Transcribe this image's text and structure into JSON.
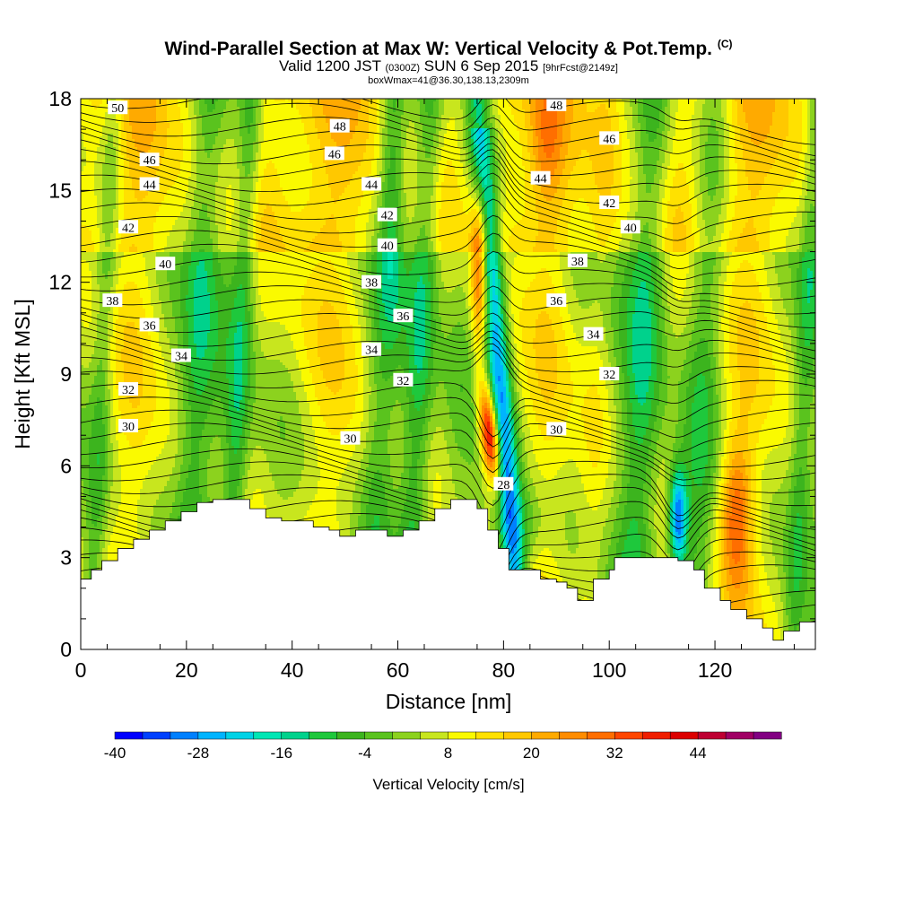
{
  "title": {
    "line1": "Wind-Parallel Section at Max W: Vertical Velocity & Pot.Temp.",
    "line1_mark": "(C)",
    "line2_a": "Valid 1200 JST",
    "line2_b": "(0300Z)",
    "line2_c": "SUN 6 Sep 2015",
    "line2_d": "[9hrFcst@2149z]",
    "line3": "boxWmax=41@36.30,138.13,2309m"
  },
  "chart_data": {
    "type": "heatmap",
    "xlabel": "Distance [nm]",
    "ylabel": "Height [Kft MSL]",
    "xlim": [
      0,
      139
    ],
    "ylim": [
      0,
      18
    ],
    "x_ticks": [
      0,
      20,
      40,
      60,
      80,
      100,
      120
    ],
    "y_ticks": [
      0,
      3,
      6,
      9,
      12,
      15,
      18
    ],
    "colorbar": {
      "label": "Vertical Velocity [cm/s]",
      "tick_values": [
        -40,
        -28,
        -16,
        -4,
        8,
        20,
        32,
        44
      ],
      "min": -40,
      "max": 56,
      "step": 4,
      "colors": [
        "#0000ff",
        "#0040ff",
        "#0080ff",
        "#00b4ff",
        "#00d2e6",
        "#00e6b4",
        "#00d28c",
        "#1ec83c",
        "#3cb41e",
        "#5ac31e",
        "#8cd21e",
        "#c8e61e",
        "#fafa00",
        "#ffe100",
        "#ffc800",
        "#ffaa00",
        "#ff8c00",
        "#ff6e00",
        "#ff4600",
        "#f01e00",
        "#dc0000",
        "#be0032",
        "#a00064",
        "#820082"
      ]
    },
    "terrain_kft": [
      [
        0,
        2.3
      ],
      [
        2,
        2.6
      ],
      [
        4,
        2.9
      ],
      [
        7,
        3.3
      ],
      [
        10,
        3.6
      ],
      [
        13,
        3.9
      ],
      [
        16,
        4.2
      ],
      [
        19,
        4.5
      ],
      [
        22,
        4.8
      ],
      [
        25,
        4.9
      ],
      [
        29,
        4.9
      ],
      [
        32,
        4.6
      ],
      [
        35,
        4.3
      ],
      [
        38,
        4.2
      ],
      [
        41,
        4.2
      ],
      [
        44,
        4.0
      ],
      [
        47,
        3.9
      ],
      [
        49,
        3.7
      ],
      [
        52,
        3.9
      ],
      [
        55,
        3.9
      ],
      [
        58,
        3.7
      ],
      [
        61,
        3.9
      ],
      [
        64,
        4.2
      ],
      [
        67,
        4.6
      ],
      [
        70,
        4.9
      ],
      [
        73,
        4.9
      ],
      [
        75,
        4.6
      ],
      [
        77,
        3.9
      ],
      [
        79,
        3.3
      ],
      [
        81,
        2.6
      ],
      [
        84,
        2.6
      ],
      [
        87,
        2.3
      ],
      [
        90,
        2.2
      ],
      [
        92,
        2.0
      ],
      [
        94,
        1.6
      ],
      [
        96,
        1.6
      ],
      [
        97,
        2.3
      ],
      [
        100,
        2.6
      ],
      [
        101,
        3.0
      ],
      [
        108,
        3.0
      ],
      [
        113,
        2.9
      ],
      [
        116,
        2.6
      ],
      [
        118,
        2.0
      ],
      [
        121,
        1.6
      ],
      [
        123,
        1.3
      ],
      [
        126,
        1.0
      ],
      [
        129,
        0.7
      ],
      [
        131,
        0.3
      ],
      [
        133,
        0.6
      ],
      [
        136,
        0.9
      ],
      [
        139,
        1.3
      ]
    ],
    "theta_isentrope_labels_c": [
      {
        "t": "50",
        "x": 7,
        "y": 17.7
      },
      {
        "t": "48",
        "x": 49,
        "y": 17.1
      },
      {
        "t": "48",
        "x": 90,
        "y": 17.8
      },
      {
        "t": "46",
        "x": 13,
        "y": 16.0
      },
      {
        "t": "46",
        "x": 48,
        "y": 16.2
      },
      {
        "t": "46",
        "x": 100,
        "y": 16.7
      },
      {
        "t": "44",
        "x": 13,
        "y": 15.2
      },
      {
        "t": "44",
        "x": 55,
        "y": 15.2
      },
      {
        "t": "44",
        "x": 87,
        "y": 15.4
      },
      {
        "t": "42",
        "x": 9,
        "y": 13.8
      },
      {
        "t": "42",
        "x": 58,
        "y": 14.2
      },
      {
        "t": "42",
        "x": 100,
        "y": 14.6
      },
      {
        "t": "40",
        "x": 16,
        "y": 12.6
      },
      {
        "t": "40",
        "x": 58,
        "y": 13.2
      },
      {
        "t": "40",
        "x": 104,
        "y": 13.8
      },
      {
        "t": "38",
        "x": 6,
        "y": 11.4
      },
      {
        "t": "38",
        "x": 55,
        "y": 12.0
      },
      {
        "t": "38",
        "x": 94,
        "y": 12.7
      },
      {
        "t": "36",
        "x": 13,
        "y": 10.6
      },
      {
        "t": "36",
        "x": 61,
        "y": 10.9
      },
      {
        "t": "36",
        "x": 90,
        "y": 11.4
      },
      {
        "t": "34",
        "x": 19,
        "y": 9.6
      },
      {
        "t": "34",
        "x": 55,
        "y": 9.8
      },
      {
        "t": "34",
        "x": 97,
        "y": 10.3
      },
      {
        "t": "32",
        "x": 9,
        "y": 8.5
      },
      {
        "t": "32",
        "x": 61,
        "y": 8.8
      },
      {
        "t": "32",
        "x": 100,
        "y": 9.0
      },
      {
        "t": "30",
        "x": 9,
        "y": 7.3
      },
      {
        "t": "30",
        "x": 51,
        "y": 6.9
      },
      {
        "t": "30",
        "x": 90,
        "y": 7.2
      },
      {
        "t": "28",
        "x": 80,
        "y": 5.4
      }
    ]
  }
}
